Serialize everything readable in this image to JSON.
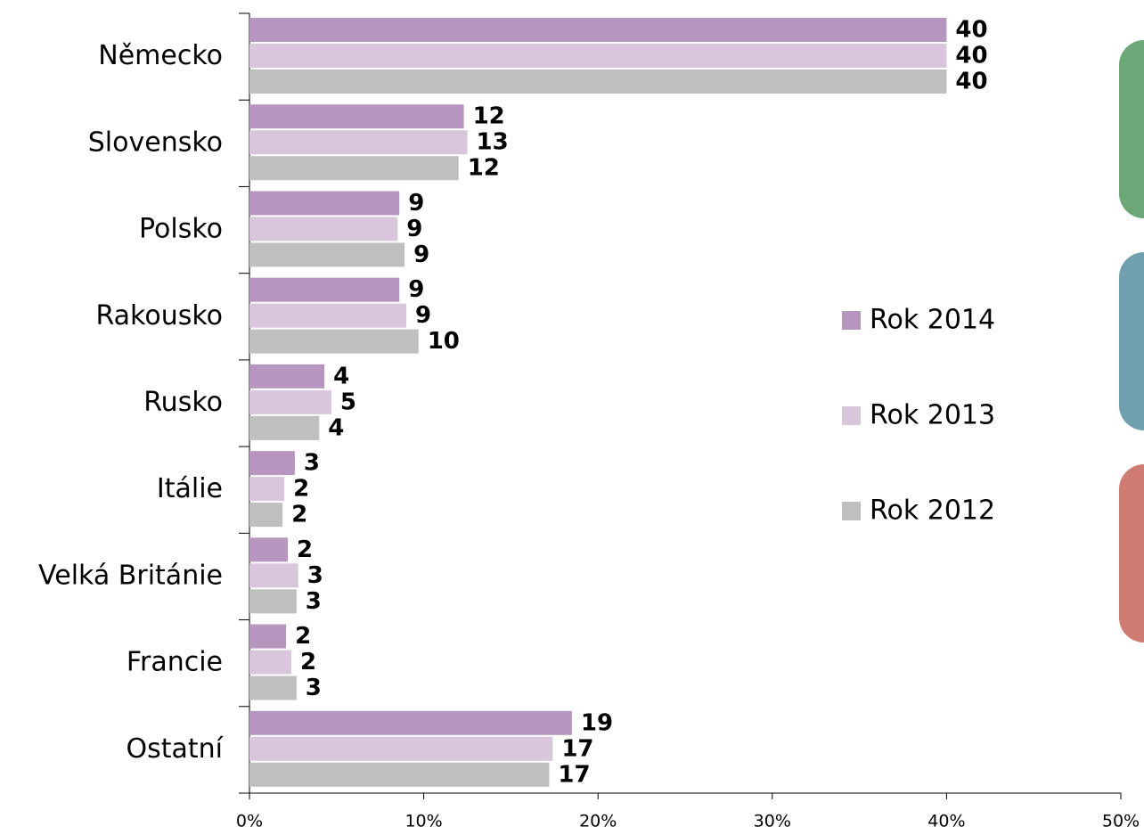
{
  "chart_data": {
    "type": "bar",
    "orientation": "horizontal",
    "categories": [
      "Německo",
      "Slovensko",
      "Polsko",
      "Rakousko",
      "Rusko",
      "Itálie",
      "Velká Británie",
      "Francie",
      "Ostatní"
    ],
    "series": [
      {
        "name": "Rok 2014",
        "color": "#b695bf",
        "values": [
          40.0,
          12.3,
          8.6,
          8.6,
          4.3,
          2.6,
          2.2,
          2.1,
          18.5
        ],
        "value_labels": [
          "40",
          "12",
          "9",
          "9",
          "4",
          "3",
          "2",
          "2",
          "19"
        ]
      },
      {
        "name": "Rok 2013",
        "color": "#d9c6dd",
        "values": [
          40.0,
          12.5,
          8.5,
          9.0,
          4.7,
          2.0,
          2.8,
          2.4,
          17.4
        ],
        "value_labels": [
          "40",
          "13",
          "9",
          "9",
          "5",
          "2",
          "3",
          "2",
          "17"
        ]
      },
      {
        "name": "Rok 2012",
        "color": "#bfbfbf",
        "values": [
          40.0,
          12.0,
          8.9,
          9.7,
          4.0,
          1.9,
          2.7,
          2.7,
          17.2
        ],
        "value_labels": [
          "40",
          "12",
          "9",
          "10",
          "4",
          "2",
          "3",
          "3",
          "17"
        ]
      }
    ],
    "xlim": [
      0,
      50
    ],
    "xticks": [
      {
        "value": 0,
        "label": "0%"
      },
      {
        "value": 10,
        "label": "10%"
      },
      {
        "value": 20,
        "label": "20%"
      },
      {
        "value": 30,
        "label": "30%"
      },
      {
        "value": 40,
        "label": "40%"
      },
      {
        "value": 50,
        "label": "50%"
      }
    ],
    "legend": "right",
    "grid": false
  }
}
